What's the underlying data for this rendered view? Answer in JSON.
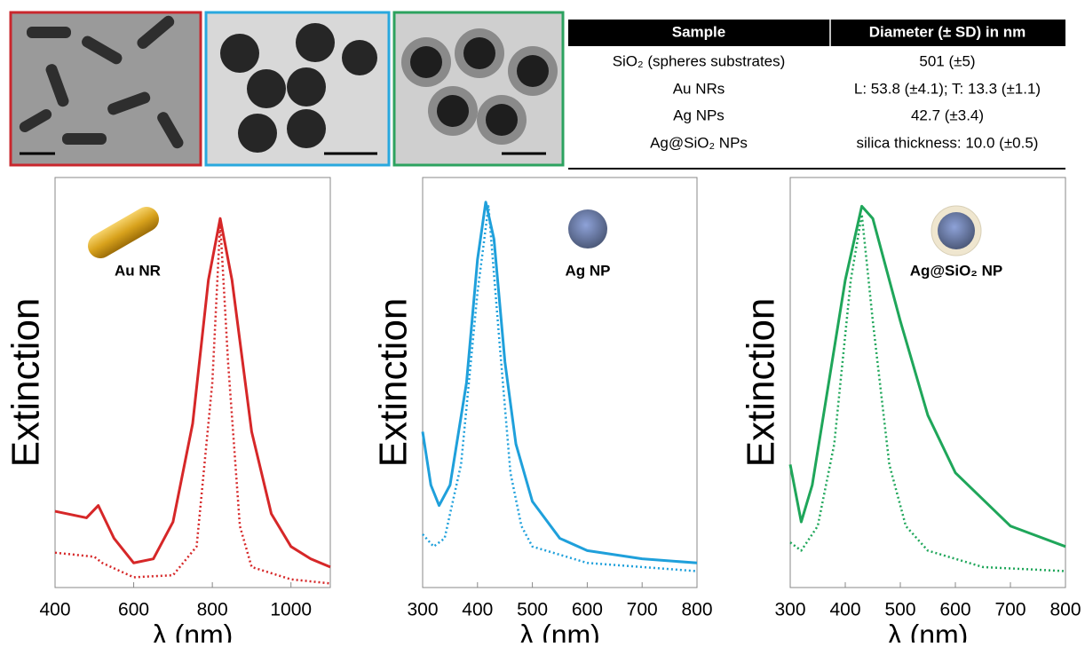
{
  "table": {
    "header": [
      "Sample",
      "Diameter (± SD) in nm"
    ],
    "rows": [
      [
        "SiO₂ (spheres substrates)",
        "501 (±5)"
      ],
      [
        "Au NRs",
        "L: 53.8 (±4.1); T: 13.3 (±1.1)"
      ],
      [
        "Ag NPs",
        "42.7 (±3.4)"
      ],
      [
        "Ag@SiO₂ NPs",
        "silica thickness: 10.0 (±0.5)"
      ]
    ]
  },
  "chart_data": [
    {
      "type": "line",
      "annotation": "Au NR",
      "xlabel": "λ (nm)",
      "ylabel": "Extinction",
      "xlim": [
        400,
        1100
      ],
      "xticks": [
        400,
        600,
        800,
        1000
      ],
      "ylim": [
        0,
        1
      ],
      "series": [
        {
          "color": "#d62728",
          "style": "solid",
          "x": [
            400,
            480,
            510,
            550,
            600,
            650,
            700,
            750,
            790,
            820,
            850,
            900,
            950,
            1000,
            1050,
            1100
          ],
          "values": [
            0.186,
            0.17,
            0.2,
            0.12,
            0.06,
            0.07,
            0.16,
            0.4,
            0.75,
            0.9,
            0.75,
            0.38,
            0.18,
            0.1,
            0.07,
            0.05
          ]
        },
        {
          "color": "#d62728",
          "style": "dotted",
          "x": [
            400,
            500,
            520,
            600,
            700,
            760,
            800,
            820,
            840,
            870,
            900,
            1000,
            1100
          ],
          "values": [
            0.085,
            0.075,
            0.06,
            0.025,
            0.03,
            0.1,
            0.5,
            0.89,
            0.55,
            0.15,
            0.05,
            0.02,
            0.01
          ]
        }
      ]
    },
    {
      "type": "line",
      "annotation": "Ag NP",
      "xlabel": "λ (nm)",
      "ylabel": "Extinction",
      "xlim": [
        300,
        800
      ],
      "xticks": [
        300,
        400,
        500,
        600,
        700,
        800
      ],
      "ylim": [
        0,
        1
      ],
      "series": [
        {
          "color": "#1fa0db",
          "style": "solid",
          "x": [
            300,
            315,
            330,
            350,
            380,
            400,
            415,
            430,
            450,
            470,
            500,
            550,
            600,
            700,
            800
          ],
          "values": [
            0.38,
            0.25,
            0.2,
            0.25,
            0.5,
            0.8,
            0.94,
            0.85,
            0.55,
            0.35,
            0.21,
            0.12,
            0.09,
            0.07,
            0.06
          ]
        },
        {
          "color": "#1fa0db",
          "style": "dotted",
          "x": [
            300,
            320,
            340,
            370,
            400,
            420,
            440,
            460,
            480,
            500,
            600,
            800
          ],
          "values": [
            0.13,
            0.1,
            0.12,
            0.3,
            0.72,
            0.93,
            0.6,
            0.28,
            0.15,
            0.1,
            0.06,
            0.04
          ]
        }
      ]
    },
    {
      "type": "line",
      "annotation": "Ag@SiO₂ NP",
      "xlabel": "λ (nm)",
      "ylabel": "Extinction",
      "xlim": [
        300,
        800
      ],
      "xticks": [
        300,
        400,
        500,
        600,
        700,
        800
      ],
      "ylim": [
        0,
        1
      ],
      "series": [
        {
          "color": "#1fa65a",
          "style": "solid",
          "x": [
            300,
            320,
            340,
            370,
            400,
            430,
            450,
            500,
            550,
            600,
            700,
            800
          ],
          "values": [
            0.3,
            0.16,
            0.25,
            0.5,
            0.75,
            0.93,
            0.9,
            0.65,
            0.42,
            0.28,
            0.15,
            0.1
          ]
        },
        {
          "color": "#1fa65a",
          "style": "dotted",
          "x": [
            300,
            320,
            350,
            380,
            410,
            430,
            450,
            480,
            510,
            550,
            650,
            800
          ],
          "values": [
            0.11,
            0.09,
            0.15,
            0.35,
            0.75,
            0.91,
            0.65,
            0.3,
            0.15,
            0.09,
            0.05,
            0.04
          ]
        }
      ]
    }
  ]
}
